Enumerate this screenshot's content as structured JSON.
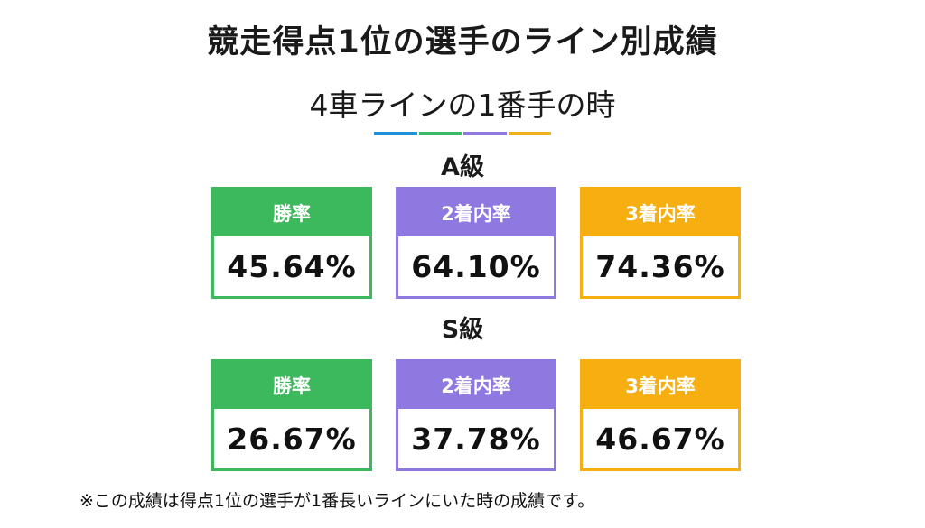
{
  "title": "競走得点1位の選手のライン別成績",
  "subtitle": "4車ラインの1番手の時",
  "divider_colors": [
    "#1f8fd6",
    "#3db865",
    "#8f78e0",
    "#f2b01e"
  ],
  "colors": {
    "win": "#3cb95c",
    "top2": "#8f78e0",
    "top3": "#f7ae10"
  },
  "groups": [
    {
      "label": "A級",
      "stats": [
        {
          "label": "勝率",
          "value": "45.64%"
        },
        {
          "label": "2着内率",
          "value": "64.10%"
        },
        {
          "label": "3着内率",
          "value": "74.36%"
        }
      ]
    },
    {
      "label": "S級",
      "stats": [
        {
          "label": "勝率",
          "value": "26.67%"
        },
        {
          "label": "2着内率",
          "value": "37.78%"
        },
        {
          "label": "3着内率",
          "value": "46.67%"
        }
      ]
    }
  ],
  "footnote": "※この成績は得点1位の選手が1番長いラインにいた時の成績です。"
}
